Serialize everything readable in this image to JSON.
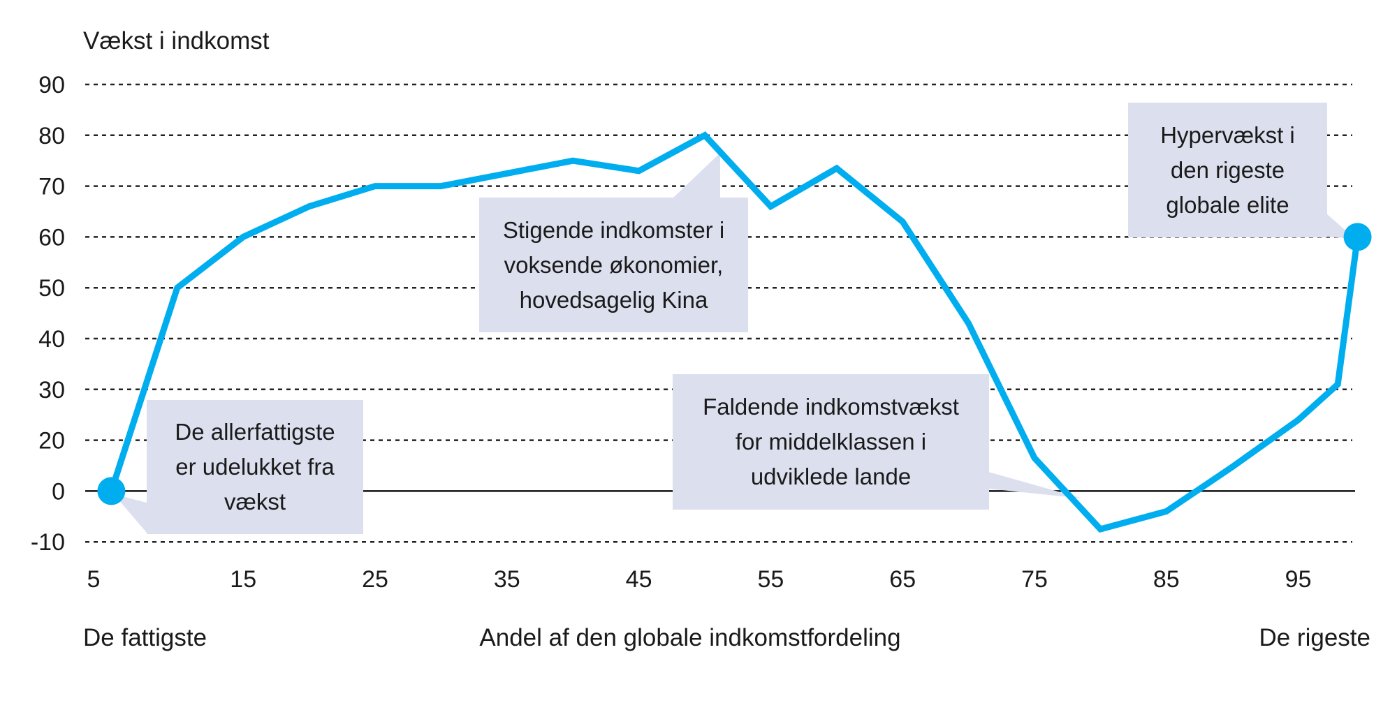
{
  "chart_data": {
    "type": "line",
    "ylabel": "Vækst i indkomst",
    "xlabel": "Andel af den globale indkomstfordeling",
    "x_left_label": "De fattigste",
    "x_right_label": "De rigeste",
    "x_ticks": [
      5,
      15,
      25,
      35,
      45,
      55,
      65,
      75,
      85,
      95
    ],
    "y_ticks": [
      90,
      80,
      70,
      60,
      50,
      40,
      30,
      20,
      0,
      -10
    ],
    "xlim": [
      5,
      100
    ],
    "ylim": [
      -10,
      90
    ],
    "grid": "horizontal dotted",
    "line_color": "#00aeef",
    "callout_color": "#dcdfee",
    "x": [
      5,
      10,
      15,
      20,
      25,
      30,
      35,
      40,
      45,
      50,
      55,
      60,
      65,
      70,
      75,
      80,
      85,
      90,
      95,
      98,
      99.5
    ],
    "values": [
      0,
      50,
      60,
      66,
      70,
      70,
      72.5,
      75,
      73,
      80,
      66,
      73.5,
      63,
      43,
      13,
      -7.5,
      -4,
      9.5,
      24,
      31,
      60
    ],
    "annotations": [
      {
        "lines": [
          "De allerfattigste",
          "er udelukket fra",
          "vækst"
        ],
        "x": 5,
        "y": 0
      },
      {
        "lines": [
          "Stigende indkomster i",
          "voksende økonomier,",
          "hovedsagelig Kina"
        ],
        "x": 50,
        "y": 80
      },
      {
        "lines": [
          "Faldende indkomstvækst",
          "for middelklassen i",
          "udviklede lande"
        ],
        "x": 78,
        "y": 0
      },
      {
        "lines": [
          "Hypervækst i",
          "den rigeste",
          "globale elite"
        ],
        "x": 99.5,
        "y": 60
      }
    ]
  }
}
